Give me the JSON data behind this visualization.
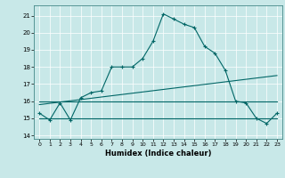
{
  "title": "",
  "xlabel": "Humidex (Indice chaleur)",
  "background_color": "#c8e8e8",
  "grid_color": "#ffffff",
  "line_color": "#006666",
  "xlim": [
    -0.5,
    23.5
  ],
  "ylim": [
    13.8,
    21.6
  ],
  "yticks": [
    14,
    15,
    16,
    17,
    18,
    19,
    20,
    21
  ],
  "xticks": [
    0,
    1,
    2,
    3,
    4,
    5,
    6,
    7,
    8,
    9,
    10,
    11,
    12,
    13,
    14,
    15,
    16,
    17,
    18,
    19,
    20,
    21,
    22,
    23
  ],
  "series": [
    {
      "x": [
        0,
        1,
        2,
        3,
        4,
        5,
        6,
        7,
        8,
        9,
        10,
        11,
        12,
        13,
        14,
        15,
        16,
        17,
        18,
        19,
        20,
        21,
        22,
        23
      ],
      "y": [
        15.3,
        14.9,
        15.9,
        14.9,
        16.2,
        16.5,
        16.6,
        18.0,
        18.0,
        18.0,
        18.5,
        19.5,
        21.1,
        20.8,
        20.5,
        20.3,
        19.2,
        18.8,
        17.8,
        16.0,
        15.9,
        15.0,
        14.7,
        15.3
      ],
      "marker": "+"
    },
    {
      "x": [
        0,
        23
      ],
      "y": [
        15.0,
        15.0
      ],
      "marker": null
    },
    {
      "x": [
        0,
        23
      ],
      "y": [
        15.8,
        17.5
      ],
      "marker": null
    },
    {
      "x": [
        0,
        23
      ],
      "y": [
        16.0,
        16.0
      ],
      "marker": null
    }
  ]
}
